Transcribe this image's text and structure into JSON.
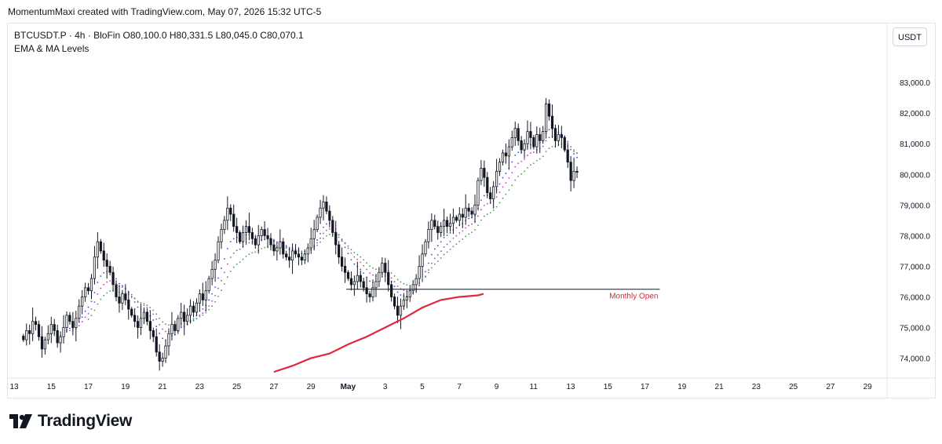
{
  "header": {
    "caption": "MomentumMaxi created with TradingView.com, May 07, 2026 15:32 UTC-5"
  },
  "symbol_info": {
    "symbol": "BTCUSDT.P",
    "interval": "4h",
    "exchange": "BloFin",
    "open": "80,100.0",
    "high": "80,331.5",
    "low": "80,045.0",
    "close": "80,070.1",
    "text": "BTCUSDT.P · 4h · BloFin   O80,100.0   H80,331.5   L80,045.0   C80,070.1"
  },
  "indicator_label": "EMA & MA Levels",
  "currency_button": "USDT",
  "footer": {
    "brand": "TradingView",
    "logo_icon": "tradingview-logo-icon"
  },
  "colors": {
    "up_candle": "#ffffff",
    "down_candle": "#131722",
    "monthly_ma": "#e0283a",
    "ema_fast": "#3a46e8",
    "ema_mid": "#c238c4",
    "ema_slow": "#4a9a55",
    "grid": "#f0f3fa",
    "axis_text": "#131722",
    "monthly_open_label": "#e0283a"
  },
  "chart_data": {
    "type": "candlestick",
    "title": "",
    "timeframe": "4h",
    "y_axis": {
      "ylim": [
        73400,
        83900
      ],
      "ticks": [
        "74,000.0",
        "75,000.0",
        "76,000.0",
        "77,000.0",
        "78,000.0",
        "79,000.0",
        "80,000.0",
        "81,000.0",
        "82,000.0",
        "83,000.0"
      ],
      "tick_values": [
        74000,
        75000,
        76000,
        77000,
        78000,
        79000,
        80000,
        81000,
        82000,
        83000
      ]
    },
    "x_axis": {
      "xlim": [
        0,
        47.3
      ],
      "ticks": [
        "13",
        "15",
        "17",
        "19",
        "21",
        "23",
        "25",
        "27",
        "29",
        "May",
        "3",
        "5",
        "7",
        "9",
        "11",
        "13",
        "15",
        "17",
        "19",
        "21",
        "23",
        "25",
        "27",
        "29"
      ],
      "tick_days": [
        0,
        2,
        4,
        6,
        8,
        10,
        12,
        14,
        16,
        18,
        20,
        22,
        24,
        26,
        28,
        30,
        32,
        34,
        36,
        38,
        40,
        42,
        44,
        46
      ]
    },
    "grid": false,
    "candles": {
      "start_day": 0.5,
      "step_days": 0.1667,
      "closes": [
        74600,
        74900,
        74800,
        75200,
        75100,
        74700,
        74300,
        74600,
        74800,
        75100,
        74900,
        74500,
        74700,
        75000,
        75400,
        75200,
        75000,
        75300,
        75700,
        76000,
        76300,
        76200,
        76600,
        77300,
        77800,
        77500,
        77200,
        77000,
        76800,
        76400,
        76000,
        75800,
        76100,
        75900,
        75600,
        75400,
        75200,
        75000,
        75300,
        75500,
        75200,
        74900,
        74700,
        74200,
        73900,
        74000,
        74400,
        74800,
        75100,
        74900,
        75300,
        75500,
        75200,
        75400,
        75700,
        75500,
        75800,
        76100,
        75900,
        76200,
        76600,
        76900,
        77200,
        77800,
        78200,
        78500,
        78900,
        78700,
        78300,
        78100,
        77800,
        78100,
        78300,
        78100,
        77900,
        77700,
        78000,
        78200,
        78000,
        77900,
        77700,
        77500,
        77600,
        77800,
        77400,
        77300,
        77200,
        77500,
        77400,
        77300,
        77200,
        77400,
        77600,
        77900,
        78200,
        78600,
        78900,
        79100,
        78800,
        78500,
        78100,
        77700,
        77300,
        77000,
        76800,
        76600,
        76400,
        76500,
        76700,
        76500,
        76300,
        76100,
        76000,
        76300,
        76500,
        76800,
        77100,
        76800,
        76400,
        76000,
        75700,
        75400,
        75700,
        75900,
        76000,
        76200,
        76400,
        76600,
        77000,
        77400,
        77800,
        78200,
        78500,
        78300,
        78100,
        78300,
        78500,
        78300,
        78400,
        78600,
        78500,
        78700,
        78600,
        78900,
        78800,
        78700,
        79000,
        79800,
        80200,
        79900,
        79400,
        79200,
        79600,
        80100,
        80400,
        80700,
        80600,
        80900,
        81200,
        81500,
        81100,
        80800,
        81000,
        81400,
        81200,
        80900,
        81300,
        81100,
        81400,
        82300,
        81900,
        81500,
        81100,
        81300,
        81200,
        80800,
        80400,
        79800,
        80100,
        80070
      ]
    },
    "series": [
      {
        "id": "monthly_ma",
        "color": "#e0283a",
        "style": "solid",
        "x": [
          14.0,
          15.0,
          16.0,
          17.0,
          18.0,
          19.0,
          20.0,
          21.0,
          22.0,
          23.0,
          24.0,
          25.0,
          25.3
        ],
        "y": [
          73550,
          73750,
          74000,
          74150,
          74450,
          74700,
          75000,
          75300,
          75650,
          75900,
          76000,
          76050,
          76100
        ]
      },
      {
        "id": "ema_fast",
        "color": "#3a46e8",
        "style": "dotted",
        "source": "close",
        "period": 9
      },
      {
        "id": "ema_mid",
        "color": "#c238c4",
        "style": "dotted",
        "source": "close",
        "period": 14
      },
      {
        "id": "ema_slow",
        "color": "#4a9a55",
        "style": "dotted",
        "source": "close",
        "period": 21
      }
    ],
    "horizontal_level": {
      "label": "Monthly Open",
      "value": 76250,
      "x_start": 17.9,
      "x_end": 34.8,
      "color": "#131722",
      "label_color": "#e0283a"
    }
  }
}
